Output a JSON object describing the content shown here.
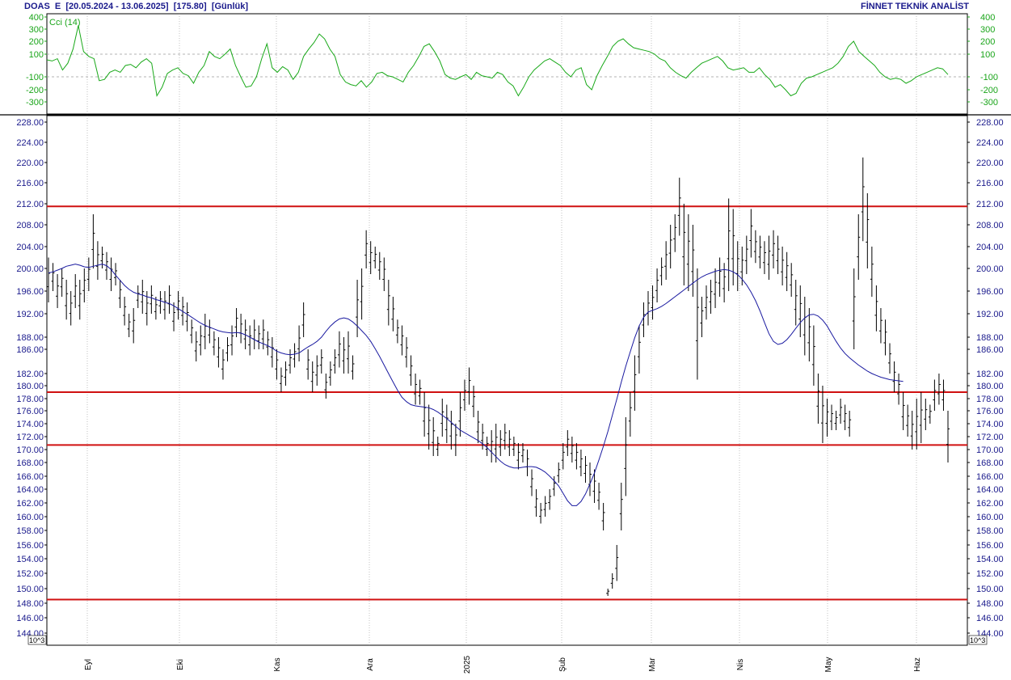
{
  "header": {
    "symbol": "DOAS",
    "exchange": "E",
    "range": "[20.05.2024 - 13.06.2025]",
    "last": "[175.80]",
    "period": "[Günlük]",
    "brand": "FİNNET TEKNİK ANALİST"
  },
  "colors": {
    "price": "#000000",
    "moving_average": "#1a1aa0",
    "cci": "#18a818",
    "support_resistance": "#d01010",
    "grid": "#9a9a9a",
    "axis_text": "#1a1a8c"
  },
  "cci_panel": {
    "label": "Cci (14)",
    "ticks": [
      "400",
      "300",
      "200",
      "100",
      "-100",
      "-200",
      "-300"
    ],
    "tick_values": [
      400,
      300,
      200,
      100,
      -100,
      -200,
      -300
    ],
    "guides": [
      100,
      -100
    ]
  },
  "price_axis": {
    "unit_left": "10^3",
    "unit_right": "10^3",
    "ticks": [
      "228.00",
      "224.00",
      "220.00",
      "216.00",
      "212.00",
      "208.00",
      "204.00",
      "200.00",
      "196.00",
      "192.00",
      "188.00",
      "186.00",
      "182.00",
      "180.00",
      "178.00",
      "176.00",
      "174.00",
      "172.00",
      "170.00",
      "168.00",
      "166.00",
      "164.00",
      "162.00",
      "160.00",
      "158.00",
      "156.00",
      "154.00",
      "152.00",
      "150.00",
      "148.00",
      "146.00",
      "144.00"
    ]
  },
  "x_axis": {
    "labels": [
      "Eyl",
      "Eki",
      "Kas",
      "Ara",
      "2025",
      "Şub",
      "Mar",
      "Nis",
      "May",
      "Haz"
    ]
  },
  "chart_data": {
    "type": "line",
    "title": "DOAS E [20.05.2024 - 13.06.2025] [175.80] [Günlük]",
    "x_labels": [
      "Eyl",
      "Eki",
      "Kas",
      "Ara",
      "2025",
      "Şub",
      "Mar",
      "Nis",
      "May",
      "Haz"
    ],
    "ylim": [
      144,
      229
    ],
    "horizontal_levels": [
      211.5,
      179.0,
      170.7,
      148.5
    ],
    "series": [
      {
        "type": "bar",
        "data": [
          [
            202,
            194
          ],
          [
            201,
            196
          ],
          [
            199,
            193
          ],
          [
            200,
            195
          ],
          [
            198,
            191
          ],
          [
            196,
            190
          ],
          [
            199,
            193
          ],
          [
            198,
            191
          ],
          [
            200,
            194
          ],
          [
            202,
            196
          ],
          [
            210,
            200
          ],
          [
            205,
            198
          ],
          [
            204,
            200
          ],
          [
            203,
            198
          ],
          [
            202,
            196
          ],
          [
            201,
            197
          ],
          [
            198,
            193
          ],
          [
            195,
            190
          ],
          [
            192,
            188
          ],
          [
            193,
            187
          ],
          [
            197,
            193
          ],
          [
            198,
            192
          ],
          [
            196,
            190
          ],
          [
            197,
            192
          ],
          [
            195,
            191
          ],
          [
            196,
            192
          ],
          [
            196,
            191
          ],
          [
            197,
            192
          ],
          [
            194,
            189
          ],
          [
            196,
            191
          ],
          [
            195,
            190
          ],
          [
            194,
            189
          ],
          [
            191,
            187
          ],
          [
            189,
            184
          ],
          [
            190,
            185
          ],
          [
            192,
            186
          ],
          [
            191,
            187
          ],
          [
            189,
            185
          ],
          [
            188,
            183
          ],
          [
            186,
            181
          ],
          [
            188,
            184
          ],
          [
            190,
            185
          ],
          [
            193,
            188
          ],
          [
            192,
            187
          ],
          [
            191,
            186
          ],
          [
            190,
            185
          ],
          [
            191,
            186
          ],
          [
            190,
            186
          ],
          [
            191,
            186
          ],
          [
            189,
            185
          ],
          [
            188,
            183
          ],
          [
            186,
            181
          ],
          [
            183,
            179
          ],
          [
            184,
            180
          ],
          [
            186,
            182
          ],
          [
            187,
            183
          ],
          [
            190,
            184
          ],
          [
            194,
            188
          ],
          [
            186,
            181
          ],
          [
            184,
            179
          ],
          [
            185,
            180
          ],
          [
            186,
            182
          ],
          [
            182,
            178
          ],
          [
            184,
            180
          ],
          [
            186,
            182
          ],
          [
            189,
            183
          ],
          [
            188,
            182
          ],
          [
            189,
            182
          ],
          [
            185,
            181
          ],
          [
            198,
            188
          ],
          [
            200,
            191
          ],
          [
            207,
            200
          ],
          [
            205,
            199
          ],
          [
            204,
            200
          ],
          [
            203,
            198
          ],
          [
            202,
            196
          ],
          [
            198,
            190
          ],
          [
            195,
            189
          ],
          [
            191,
            187
          ],
          [
            190,
            185
          ],
          [
            188,
            183
          ],
          [
            185,
            180
          ],
          [
            182,
            177
          ],
          [
            181,
            177
          ],
          [
            179,
            172
          ],
          [
            177,
            170
          ],
          [
            175,
            169
          ],
          [
            172,
            169
          ],
          [
            178,
            172
          ],
          [
            177,
            171
          ],
          [
            176,
            170
          ],
          [
            174,
            169
          ],
          [
            179,
            172
          ],
          [
            181,
            176
          ],
          [
            183,
            177
          ],
          [
            180,
            175
          ],
          [
            176,
            171
          ],
          [
            174,
            170
          ],
          [
            172,
            169
          ],
          [
            173,
            168
          ],
          [
            174,
            168
          ],
          [
            173,
            169
          ],
          [
            174,
            170
          ],
          [
            173,
            169
          ],
          [
            172,
            169
          ],
          [
            171,
            167
          ],
          [
            171,
            168
          ],
          [
            170,
            166
          ],
          [
            167,
            163
          ],
          [
            164,
            160
          ],
          [
            162,
            159
          ],
          [
            163,
            160
          ],
          [
            164,
            161
          ],
          [
            166,
            163
          ],
          [
            168,
            165
          ],
          [
            171,
            167
          ],
          [
            173,
            169
          ],
          [
            172,
            168
          ],
          [
            171,
            167
          ],
          [
            170,
            166
          ],
          [
            169,
            165
          ],
          [
            168,
            163
          ],
          [
            167,
            162
          ],
          [
            165,
            161
          ],
          [
            162,
            158
          ],
          [
            150,
            149
          ],
          [
            152,
            150
          ],
          [
            156,
            151
          ],
          [
            165,
            158
          ],
          [
            175,
            163
          ],
          [
            179,
            172
          ],
          [
            185,
            176
          ],
          [
            190,
            182
          ],
          [
            194,
            188
          ],
          [
            196,
            190
          ],
          [
            197,
            191
          ],
          [
            200,
            194
          ],
          [
            202,
            197
          ],
          [
            205,
            198
          ],
          [
            208,
            200
          ],
          [
            210,
            203
          ],
          [
            217,
            206
          ],
          [
            212,
            197
          ],
          [
            210,
            196
          ],
          [
            208,
            195
          ],
          [
            200,
            181
          ],
          [
            195,
            188
          ],
          [
            197,
            191
          ],
          [
            198,
            192
          ],
          [
            200,
            193
          ],
          [
            202,
            195
          ],
          [
            201,
            194
          ],
          [
            213,
            196
          ],
          [
            211,
            197
          ],
          [
            205,
            196
          ],
          [
            204,
            197
          ],
          [
            206,
            199
          ],
          [
            211,
            202
          ],
          [
            207,
            201
          ],
          [
            206,
            200
          ],
          [
            205,
            199
          ],
          [
            206,
            198
          ],
          [
            207,
            200
          ],
          [
            206,
            199
          ],
          [
            204,
            197
          ],
          [
            203,
            196
          ],
          [
            201,
            195
          ],
          [
            198,
            190
          ],
          [
            197,
            188
          ],
          [
            195,
            185
          ],
          [
            193,
            184
          ],
          [
            190,
            180
          ],
          [
            182,
            174
          ],
          [
            180,
            171
          ],
          [
            178,
            172
          ],
          [
            177,
            173
          ],
          [
            176,
            173
          ],
          [
            178,
            174
          ],
          [
            177,
            173
          ],
          [
            176,
            172
          ],
          [
            200,
            186
          ],
          [
            210,
            198
          ],
          [
            221,
            205
          ],
          [
            214,
            200
          ],
          [
            204,
            195
          ],
          [
            197,
            189
          ],
          [
            193,
            187
          ],
          [
            191,
            185
          ],
          [
            187,
            182
          ],
          [
            184,
            179
          ],
          [
            182,
            177
          ],
          [
            179,
            173
          ],
          [
            177,
            172
          ],
          [
            176,
            170
          ],
          [
            178,
            170
          ],
          [
            179,
            171
          ],
          [
            178,
            173
          ],
          [
            177,
            174
          ],
          [
            181,
            176
          ],
          [
            182,
            177
          ],
          [
            181,
            176
          ],
          [
            176,
            168
          ]
        ]
      },
      {
        "name": "",
        "values": [
          199.2,
          199.4,
          199.7,
          200.0,
          200.4,
          200.6,
          200.8,
          200.6,
          200.3,
          200.2,
          200.4,
          200.6,
          200.8,
          200.5,
          199.8,
          198.8,
          197.9,
          197.0,
          196.3,
          195.8,
          195.5,
          195.3,
          195.0,
          194.8,
          194.5,
          194.3,
          194.0,
          193.8,
          193.4,
          192.9,
          192.4,
          191.9,
          191.4,
          190.9,
          190.4,
          190.0,
          189.7,
          189.4,
          189.1,
          188.9,
          188.8,
          188.7,
          188.8,
          188.7,
          188.4,
          188.0,
          187.6,
          187.2,
          186.9,
          186.6,
          186.2,
          185.7,
          185.4,
          185.2,
          185.1,
          185.2,
          185.4,
          185.9,
          186.4,
          186.8,
          187.3,
          188.0,
          189.0,
          189.9,
          190.6,
          191.1,
          191.3,
          191.1,
          190.6,
          189.9,
          189.1,
          188.3,
          187.3,
          186.1,
          184.8,
          183.4,
          182.0,
          180.6,
          179.3,
          178.2,
          177.5,
          177.0,
          176.8,
          176.7,
          176.6,
          176.5,
          176.2,
          175.8,
          175.3,
          174.8,
          174.2,
          173.6,
          173.0,
          172.6,
          172.2,
          171.8,
          171.4,
          170.9,
          170.3,
          169.6,
          168.9,
          168.2,
          167.7,
          167.4,
          167.2,
          167.2,
          167.3,
          167.4,
          167.4,
          167.3,
          167.0,
          166.6,
          166.0,
          165.3,
          164.5,
          163.4,
          162.3,
          161.6,
          161.6,
          162.2,
          163.3,
          164.8,
          166.5,
          168.4,
          170.5,
          172.8,
          175.3,
          177.9,
          180.6,
          183.2,
          185.6,
          187.9,
          189.9,
          191.4,
          192.3,
          192.6,
          192.9,
          193.3,
          193.8,
          194.4,
          195.0,
          195.6,
          196.2,
          196.8,
          197.4,
          198.0,
          198.5,
          198.9,
          199.2,
          199.5,
          199.7,
          199.8,
          199.7,
          199.4,
          198.9,
          198.1,
          197.1,
          195.8,
          194.3,
          192.5,
          190.5,
          188.6,
          187.3,
          186.8,
          187.0,
          187.6,
          188.5,
          189.5,
          190.5,
          191.3,
          191.8,
          191.9,
          191.6,
          190.9,
          189.9,
          188.6,
          187.3,
          186.2,
          185.3,
          184.6,
          184.0,
          183.4,
          182.9,
          182.4,
          182.0,
          181.7,
          181.4,
          181.2,
          181.0,
          180.9,
          180.8,
          180.7
        ]
      },
      {
        "name": "Cci (14)",
        "values": [
          50,
          40,
          60,
          -40,
          20,
          140,
          330,
          120,
          80,
          60,
          -130,
          -120,
          -60,
          -40,
          -60,
          0,
          10,
          -20,
          30,
          60,
          20,
          -250,
          -180,
          -70,
          -40,
          -20,
          -70,
          -90,
          -150,
          -60,
          0,
          120,
          80,
          60,
          100,
          140,
          0,
          -100,
          -180,
          -170,
          -100,
          60,
          180,
          -20,
          -60,
          -10,
          -40,
          -120,
          -60,
          80,
          140,
          190,
          260,
          220,
          140,
          80,
          -80,
          -140,
          -160,
          -170,
          -130,
          -180,
          -140,
          -70,
          -60,
          -90,
          -100,
          -120,
          -140,
          -60,
          0,
          80,
          160,
          180,
          120,
          40,
          -80,
          -110,
          -120,
          -100,
          -80,
          -120,
          -60,
          -90,
          -100,
          -110,
          -60,
          -80,
          -140,
          -170,
          -250,
          -180,
          -100,
          -40,
          0,
          40,
          60,
          30,
          0,
          -60,
          -100,
          -40,
          -20,
          -160,
          -200,
          -90,
          0,
          80,
          160,
          200,
          220,
          180,
          150,
          140,
          130,
          120,
          100,
          60,
          40,
          -20,
          -60,
          -90,
          -110,
          -60,
          -20,
          20,
          40,
          60,
          80,
          40,
          -20,
          -40,
          -30,
          -20,
          -60,
          -60,
          -20,
          -80,
          -120,
          -180,
          -160,
          -200,
          -250,
          -230,
          -150,
          -110,
          -100,
          -80,
          -60,
          -40,
          -20,
          20,
          80,
          160,
          200,
          120,
          80,
          40,
          0,
          -60,
          -100,
          -120,
          -110,
          -120,
          -150,
          -130,
          -100,
          -80,
          -60,
          -40,
          -20,
          -30,
          -80
        ]
      }
    ]
  }
}
